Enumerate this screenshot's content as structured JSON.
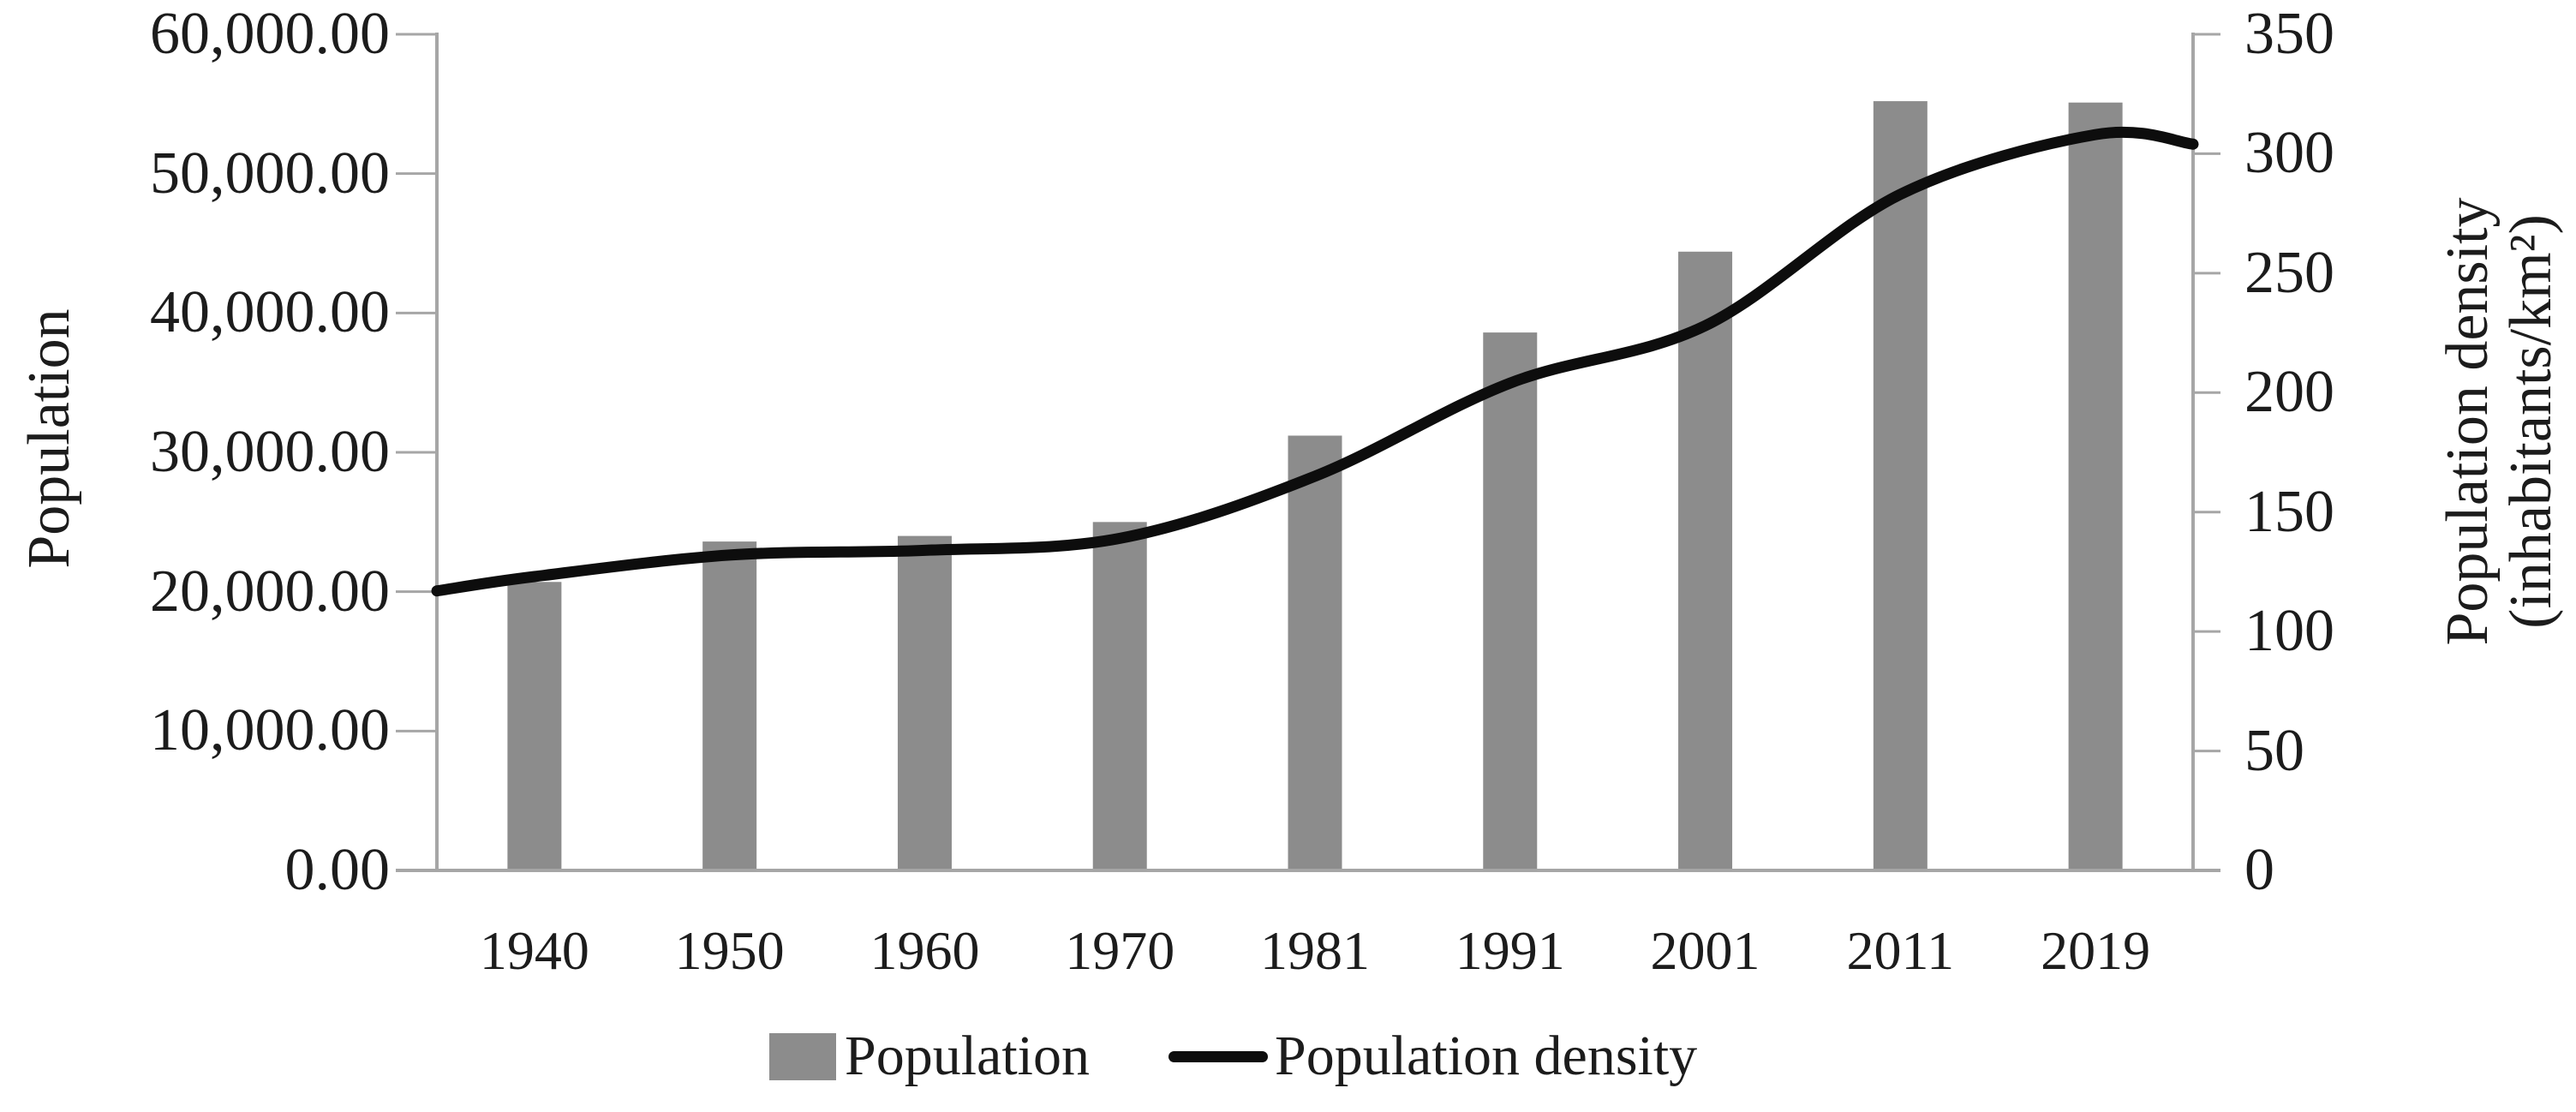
{
  "chart_data": {
    "type": "combo",
    "title": "",
    "categories": [
      "1940",
      "1950",
      "1960",
      "1970",
      "1981",
      "1991",
      "2001",
      "2011",
      "2019"
    ],
    "series": [
      {
        "name": "Population",
        "type": "bar",
        "axis": "left",
        "color": "#8c8c8c",
        "values": [
          20700,
          23600,
          24000,
          25000,
          31200,
          38600,
          44400,
          55200,
          55100
        ]
      },
      {
        "name": "Population density",
        "type": "line",
        "axis": "right",
        "color": "#0d0d0d",
        "values": [
          123,
          132,
          134,
          139,
          165,
          204,
          228,
          283,
          308
        ],
        "edge_values": {
          "left": 117,
          "right": 304
        }
      }
    ],
    "left_axis": {
      "label": "Population",
      "min": 0,
      "max": 60000,
      "tick_labels": [
        "60,000.00",
        "50,000.00",
        "40,000.00",
        "30,000.00",
        "20,000.00",
        "10,000.00",
        "0.00"
      ]
    },
    "right_axis": {
      "label_line1": "Population density",
      "label_line2": "(inhabitants/km²)",
      "min": 0,
      "max": 350,
      "tick_labels": [
        "350",
        "300",
        "250",
        "200",
        "150",
        "100",
        "50",
        "0"
      ]
    },
    "legend": [
      {
        "label": "Population",
        "marker": "square"
      },
      {
        "label": "Population density",
        "marker": "line"
      }
    ],
    "legend_position": "bottom",
    "grid": false,
    "axis_color": "#a6a6a6",
    "text_color": "#1c1c1c"
  }
}
